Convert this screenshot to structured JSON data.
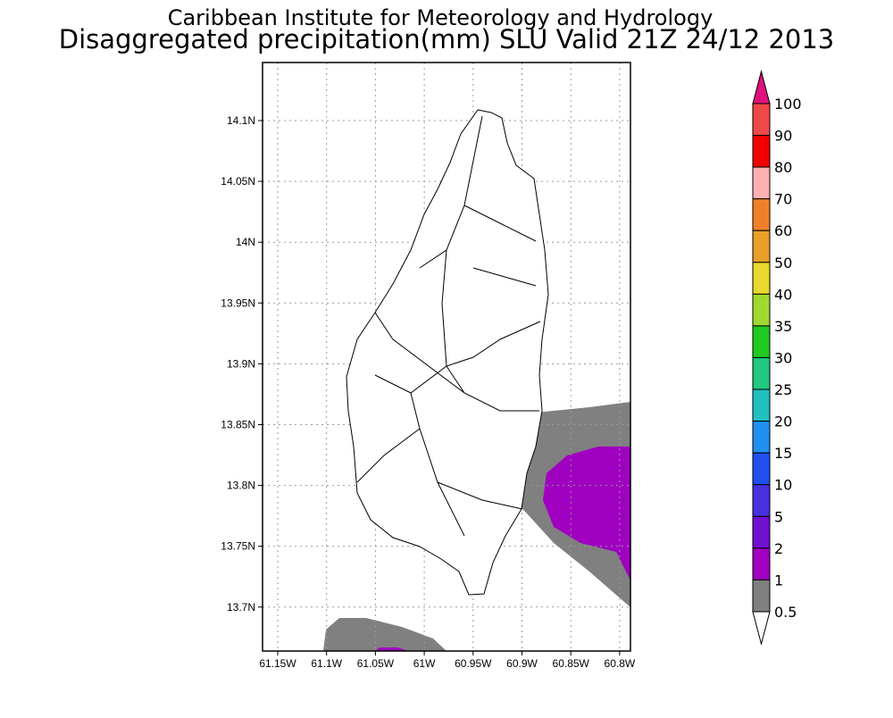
{
  "header": {
    "line1": "Caribbean Institute for Meteorology and Hydrology",
    "line2": "Disaggregated precipitation(mm) SLU Valid 21Z 24/12 2013"
  },
  "map": {
    "lat_ticks": [
      "14.1N",
      "14.05N",
      "14N",
      "13.95N",
      "13.9N",
      "13.85N",
      "13.8N",
      "13.75N",
      "13.7N"
    ],
    "lon_ticks": [
      "61.15W",
      "61.1W",
      "61.05W",
      "61W",
      "60.95W",
      "60.9W",
      "60.85W",
      "60.8W"
    ]
  },
  "colorbar": {
    "levels": [
      "100",
      "90",
      "80",
      "70",
      "60",
      "50",
      "40",
      "35",
      "30",
      "25",
      "20",
      "15",
      "10",
      "5",
      "2",
      "1",
      "0.5"
    ],
    "colors": [
      "#e0107c",
      "#f04848",
      "#f00000",
      "#ffb0b0",
      "#f08028",
      "#e8a028",
      "#e8d830",
      "#a0d830",
      "#20c820",
      "#20c880",
      "#20c0c0",
      "#2090f0",
      "#2050f0",
      "#4830e0",
      "#7010d0",
      "#a000c0",
      "#808080",
      "#ffffff"
    ]
  }
}
